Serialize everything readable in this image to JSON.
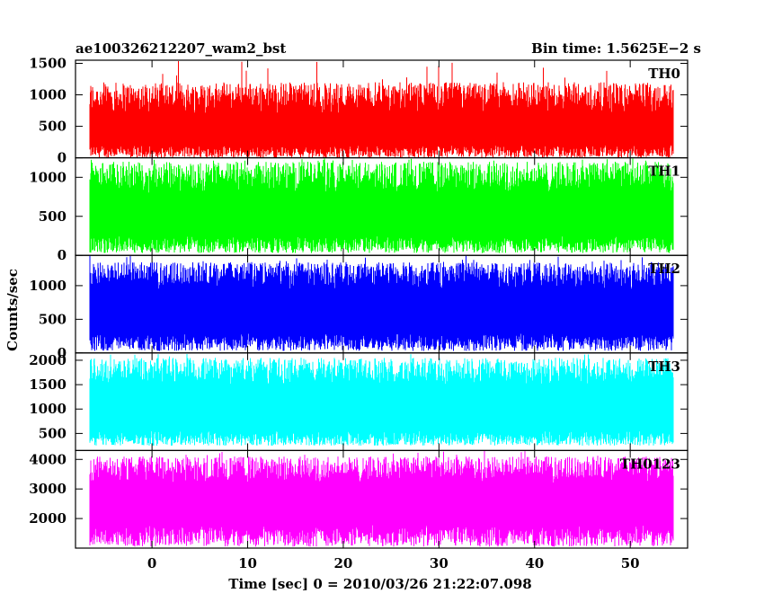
{
  "header": {
    "title": "ae100326212207_wam2_bst",
    "bin_time": "Bin time: 1.5625E−2 s"
  },
  "chart_data": {
    "type": "line",
    "title": "ae100326212207_wam2_bst",
    "xlabel": "Time [sec] 0 = 2010/03/26 21:22:07.098",
    "ylabel": "Counts/sec",
    "xlim": [
      -8,
      56
    ],
    "xticks": [
      0,
      10,
      20,
      30,
      40,
      50
    ],
    "grid": false,
    "bin_time_s": 0.015625,
    "series": [
      {
        "name": "TH0",
        "color": "#ff0000",
        "ylim": [
          0,
          1550
        ],
        "yticks": [
          0,
          500,
          1000,
          1500
        ],
        "baseline": 0,
        "low": [
          0,
          200
        ],
        "high": [
          700,
          1200
        ],
        "peak": 1550
      },
      {
        "name": "TH1",
        "color": "#00ff00",
        "ylim": [
          0,
          1250
        ],
        "yticks": [
          0,
          500,
          1000
        ],
        "baseline": 0,
        "low": [
          30,
          250
        ],
        "high": [
          800,
          1200
        ],
        "peak": 1250
      },
      {
        "name": "TH2",
        "color": "#0000ff",
        "ylim": [
          0,
          1450
        ],
        "yticks": [
          0,
          500,
          1000
        ],
        "baseline": 0,
        "low": [
          30,
          300
        ],
        "high": [
          950,
          1350
        ],
        "peak": 1450
      },
      {
        "name": "TH3",
        "color": "#00ffff",
        "ylim": [
          150,
          2150
        ],
        "yticks": [
          500,
          1000,
          1500,
          2000
        ],
        "baseline": 150,
        "low": [
          250,
          550
        ],
        "high": [
          1500,
          2050
        ],
        "peak": 2150
      },
      {
        "name": "TH0123",
        "color": "#ff00ff",
        "ylim": [
          1000,
          4300
        ],
        "yticks": [
          2000,
          3000,
          4000
        ],
        "baseline": 1000,
        "low": [
          1050,
          1800
        ],
        "high": [
          3200,
          4100
        ],
        "peak": 4300
      }
    ]
  }
}
